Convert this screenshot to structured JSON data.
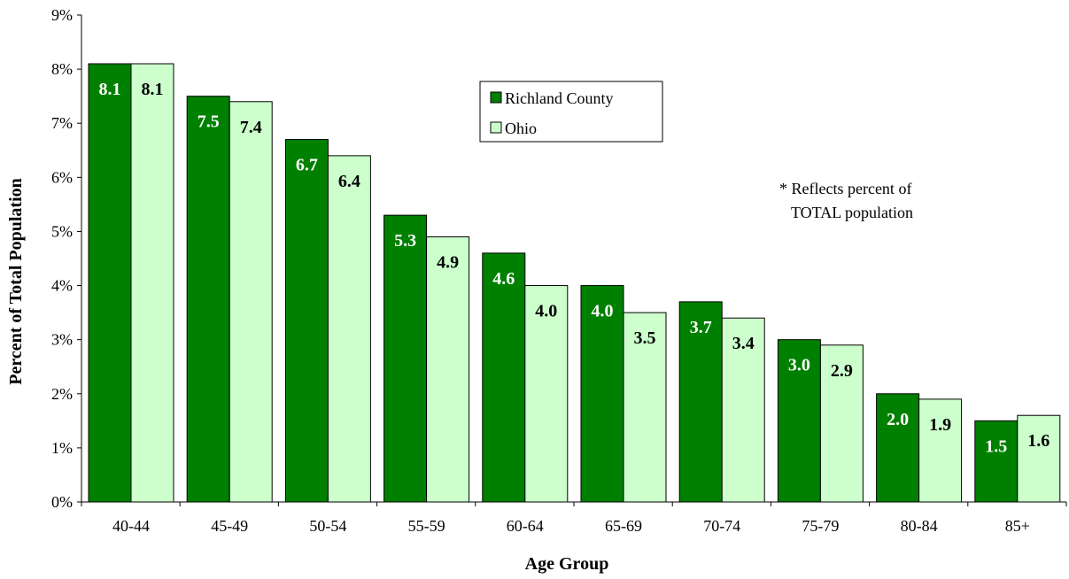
{
  "chart_data": {
    "type": "bar",
    "categories": [
      "40-44",
      "45-49",
      "50-54",
      "55-59",
      "60-64",
      "65-69",
      "70-74",
      "75-79",
      "80-84",
      "85+"
    ],
    "series": [
      {
        "name": "Richland County",
        "values": [
          8.1,
          7.5,
          6.7,
          5.3,
          4.6,
          4.0,
          3.7,
          3.0,
          2.0,
          1.5
        ],
        "color": "#008000"
      },
      {
        "name": "Ohio",
        "values": [
          8.1,
          7.4,
          6.4,
          4.9,
          4.0,
          3.5,
          3.4,
          2.9,
          1.9,
          1.6
        ],
        "color": "#ccffcc"
      }
    ],
    "value_labels": {
      "Richland County": [
        "8.1",
        "7.5",
        "6.7",
        "5.3",
        "4.6",
        "4.0",
        "3.7",
        "3.0",
        "2.0",
        "1.5"
      ],
      "Ohio": [
        "8.1",
        "7.4",
        "6.4",
        "4.9",
        "4.0",
        "3.5",
        "3.4",
        "2.9",
        "1.9",
        "1.6"
      ]
    },
    "xlabel": "Age Group",
    "ylabel": "Percent of Total Population",
    "ylim": [
      0,
      9
    ],
    "yticks": [
      "0%",
      "1%",
      "2%",
      "3%",
      "4%",
      "5%",
      "6%",
      "7%",
      "8%",
      "9%"
    ],
    "grid": false,
    "legend_position": "top-center",
    "annotation": [
      "* Reflects percent of",
      "TOTAL population"
    ]
  }
}
